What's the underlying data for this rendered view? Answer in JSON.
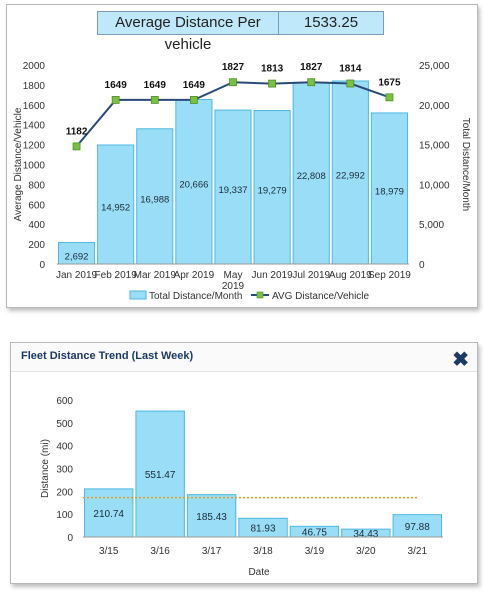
{
  "kpi": {
    "label": "Average Distance Per vehicle",
    "value": "1533.25"
  },
  "chart_data": [
    {
      "type": "bar",
      "categories": [
        "Jan 2019",
        "Feb 2019",
        "Mar 2019",
        "Apr 2019",
        "May 2019",
        "Jun 2019",
        "Jul 2019",
        "Aug 2019",
        "Sep 2019"
      ],
      "series": [
        {
          "name": "Total Distance/Month",
          "type": "bar",
          "axis": "right",
          "color": "#99def6",
          "values": [
            2692,
            14952,
            16988,
            20666,
            19337,
            19279,
            22808,
            22992,
            18979
          ],
          "labels": [
            "2,692",
            "14,952",
            "16,988",
            "20,666",
            "19,337",
            "19,279",
            "22,808",
            "22,992",
            "18,979"
          ]
        },
        {
          "name": "AVG Distance/Vehicle",
          "type": "line",
          "axis": "left",
          "color": "#2b4a7a",
          "marker_color": "#7ac143",
          "values": [
            1182,
            1649,
            1649,
            1649,
            1827,
            1813,
            1827,
            1814,
            1675
          ],
          "labels": [
            "1182",
            "1649",
            "1649",
            "1649",
            "1827",
            "1813",
            "1827",
            "1814",
            "1675"
          ]
        }
      ],
      "ylabel": "Average Distance/Vehicle",
      "ylim": [
        0,
        2000
      ],
      "yticks": [
        "0",
        "200",
        "400",
        "600",
        "800",
        "1000",
        "1200",
        "1400",
        "1600",
        "1800",
        "2000"
      ],
      "y2label": "Total Distance/Month",
      "y2lim": [
        0,
        25000
      ],
      "y2ticks": [
        "0",
        "5,000",
        "10,000",
        "15,000",
        "20,000",
        "25,000"
      ],
      "legend_position": "bottom"
    },
    {
      "type": "bar",
      "title": "Fleet Distance Trend (Last Week)",
      "categories": [
        "3/15",
        "3/16",
        "3/17",
        "3/18",
        "3/19",
        "3/20",
        "3/21"
      ],
      "values": [
        210.74,
        551.47,
        185.43,
        81.93,
        46.75,
        34.43,
        97.88
      ],
      "labels": [
        "210.74",
        "551.47",
        "185.43",
        "81.93",
        "46.75",
        "34.43",
        "97.88"
      ],
      "bar_color": "#99def6",
      "reference_line": {
        "value": 172.66,
        "color": "#e0a020",
        "style": "dotted"
      },
      "xlabel": "Date",
      "ylabel": "Distance (mi)",
      "ylim": [
        0,
        600
      ],
      "yticks": [
        "0",
        "100",
        "200",
        "300",
        "400",
        "500",
        "600"
      ]
    }
  ]
}
